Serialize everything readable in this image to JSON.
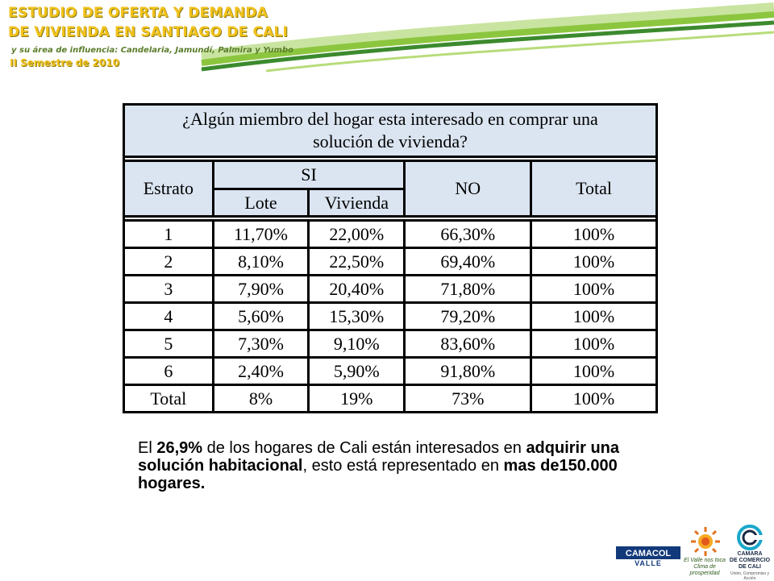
{
  "header": {
    "title_line1": "ESTUDIO DE OFERTA Y DEMANDA",
    "title_line2": "DE VIVIENDA EN SANTIAGO DE CALI",
    "subtitle": "y su área de influencia: Candelaria, Jamundí, Palmira y Yumbo",
    "semester": "II Semestre de 2010"
  },
  "table": {
    "question_line1": "¿Algún miembro del hogar esta interesado en comprar una",
    "question_line2": "solución de vivienda?",
    "col_estrato": "Estrato",
    "col_si": "SI",
    "col_lote": "Lote",
    "col_vivienda": "Vivienda",
    "col_no": "NO",
    "col_total": "Total",
    "rows": [
      {
        "estrato": "1",
        "lote": "11,70%",
        "vivienda": "22,00%",
        "no": "66,30%",
        "total": "100%"
      },
      {
        "estrato": "2",
        "lote": "8,10%",
        "vivienda": "22,50%",
        "no": "69,40%",
        "total": "100%"
      },
      {
        "estrato": "3",
        "lote": "7,90%",
        "vivienda": "20,40%",
        "no": "71,80%",
        "total": "100%"
      },
      {
        "estrato": "4",
        "lote": "5,60%",
        "vivienda": "15,30%",
        "no": "79,20%",
        "total": "100%"
      },
      {
        "estrato": "5",
        "lote": "7,30%",
        "vivienda": "9,10%",
        "no": "83,60%",
        "total": "100%"
      },
      {
        "estrato": "6",
        "lote": "2,40%",
        "vivienda": "5,90%",
        "no": "91,80%",
        "total": "100%"
      },
      {
        "estrato": "Total",
        "lote": "8%",
        "vivienda": "19%",
        "no": "73%",
        "total": "100%"
      }
    ]
  },
  "note": {
    "p1": "El ",
    "b1": "26,9%",
    "p2": " de los hogares de Cali están interesados en ",
    "b2": "adquirir una solución habitacional",
    "p3": ", esto está representado en ",
    "b3": "mas de150.000 hogares."
  },
  "logos": {
    "camacol": "CAMACOL",
    "camacol_sub": "VALLE",
    "valle_line1": "El Valle nos toca",
    "valle_line2": "Clima de prosperidad",
    "ccc_line1": "CAMARA",
    "ccc_line2": "DE COMERCIO",
    "ccc_line3": "DE CALI",
    "ccc_tag": "Unión, Compromiso y Acción"
  },
  "colors": {
    "title": "#f2c21b",
    "swoosh_green": "#8cc63f",
    "swoosh_dark": "#3c8a2e",
    "header_fill": "#dbe5f1"
  }
}
